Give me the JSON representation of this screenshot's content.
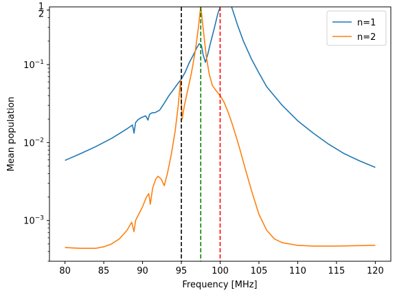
{
  "chart_data": {
    "type": "line",
    "title": "",
    "xlabel": "Frequency [MHz]",
    "ylabel": "Mean population",
    "xlim": [
      78,
      122
    ],
    "ylim": [
      0.0003,
      0.55
    ],
    "yscale": "log",
    "grid": false,
    "legend_position": "top-right",
    "x_ticks": [
      80,
      85,
      90,
      95,
      100,
      105,
      110,
      115,
      120
    ],
    "x_tick_labels": [
      "80",
      "85",
      "90",
      "95",
      "100",
      "105",
      "110",
      "115",
      "120"
    ],
    "y_ticks": [
      {
        "value": 0.001,
        "base": "10",
        "exp": "−3"
      },
      {
        "value": 0.01,
        "base": "10",
        "exp": "−2"
      },
      {
        "value": 0.1,
        "base": "10",
        "exp": "−1"
      },
      {
        "value": 0.5,
        "frac_num": "1",
        "frac_den": "2"
      }
    ],
    "series": [
      {
        "name": "n=1",
        "color": "#1f77b4",
        "x": [
          80,
          82,
          84,
          86,
          87,
          88,
          88.7,
          88.9,
          89.1,
          89.4,
          89.8,
          90.4,
          90.7,
          90.9,
          91.2,
          91.6,
          92.2,
          92.8,
          93.4,
          94,
          94.6,
          95,
          95.5,
          96,
          96.5,
          97,
          97.3,
          97.6,
          97.8,
          98.1,
          98.4,
          98.7,
          99.2,
          99.7,
          100.2,
          100.6,
          101,
          101.4,
          101.8,
          102.2,
          103,
          104,
          105,
          106,
          108,
          110,
          112,
          114,
          116,
          118,
          120
        ],
        "y": [
          0.0059,
          0.0072,
          0.0089,
          0.0113,
          0.013,
          0.015,
          0.0168,
          0.0132,
          0.018,
          0.0196,
          0.0208,
          0.022,
          0.0194,
          0.023,
          0.024,
          0.0242,
          0.026,
          0.032,
          0.04,
          0.048,
          0.058,
          0.065,
          0.08,
          0.105,
          0.13,
          0.165,
          0.185,
          0.175,
          0.135,
          0.107,
          0.135,
          0.18,
          0.28,
          0.45,
          0.62,
          0.68,
          0.67,
          0.58,
          0.44,
          0.33,
          0.2,
          0.12,
          0.078,
          0.052,
          0.03,
          0.019,
          0.0132,
          0.0095,
          0.0072,
          0.0058,
          0.0048
        ]
      },
      {
        "name": "n=2",
        "color": "#ff7f0e",
        "x": [
          80,
          82,
          84,
          85,
          86,
          87,
          88,
          88.6,
          88.9,
          89.1,
          89.5,
          90,
          90.5,
          90.8,
          91,
          91.3,
          91.7,
          92,
          92.4,
          92.8,
          93.2,
          93.7,
          94.2,
          94.6,
          94.9,
          95.1,
          95.4,
          95.8,
          96.3,
          96.8,
          97.2,
          97.5,
          97.8,
          98.2,
          98.6,
          99,
          99.5,
          100,
          100.5,
          101,
          101.5,
          102,
          102.5,
          103,
          104,
          105,
          106,
          107,
          108,
          110,
          112,
          115,
          120
        ],
        "y": [
          0.00045,
          0.00044,
          0.00044,
          0.00046,
          0.0005,
          0.00058,
          0.00075,
          0.00095,
          0.00072,
          0.001,
          0.0012,
          0.0015,
          0.002,
          0.0022,
          0.00162,
          0.0026,
          0.0034,
          0.0037,
          0.0034,
          0.0028,
          0.004,
          0.007,
          0.014,
          0.03,
          0.063,
          0.02,
          0.03,
          0.046,
          0.078,
          0.15,
          0.3,
          0.56,
          0.3,
          0.13,
          0.075,
          0.054,
          0.046,
          0.04,
          0.033,
          0.025,
          0.018,
          0.0125,
          0.0085,
          0.0056,
          0.0025,
          0.0012,
          0.00075,
          0.00058,
          0.00052,
          0.00048,
          0.00047,
          0.00047,
          0.00048
        ]
      }
    ],
    "vlines": [
      {
        "x": 95,
        "color": "#000000",
        "style": "dashed"
      },
      {
        "x": 97.5,
        "color": "#008000",
        "style": "dashed"
      },
      {
        "x": 100,
        "color": "#ff0000",
        "style": "dashed"
      }
    ]
  }
}
